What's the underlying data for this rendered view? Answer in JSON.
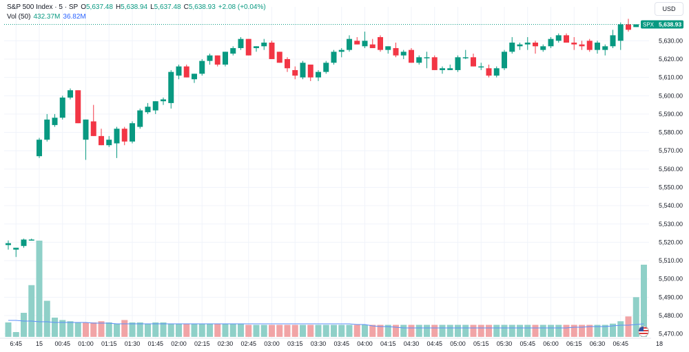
{
  "header": {
    "symbol": "S&P 500 Index · 5 · SP",
    "open_label": "O",
    "open": "5,637.48",
    "high_label": "H",
    "high": "5,638.94",
    "low_label": "L",
    "low": "5,637.48",
    "close_label": "C",
    "close": "5,638.93",
    "change": "+2.08 (+0.04%)",
    "vol_label": "Vol (50)",
    "vol_value": "432.37M",
    "vol_ma": "36.82M"
  },
  "currency": "USD",
  "price_tag": {
    "symbol": "SPX",
    "value": "5,638.93"
  },
  "colors": {
    "up": "#089981",
    "down": "#f23645",
    "vol_up": "#8fd0c8",
    "vol_down": "#f1a4a6",
    "vol_ma_line": "#5b8ff9",
    "grid": "#f0f3fa",
    "price_line": "#089981"
  },
  "chart_data": {
    "type": "candlestick",
    "ylim": [
      5465,
      5644
    ],
    "y_ticks": [
      "5,630.00",
      "5,620.00",
      "5,610.00",
      "5,600.00",
      "5,590.00",
      "5,580.00",
      "5,570.00",
      "5,560.00",
      "5,550.00",
      "5,540.00",
      "5,530.00",
      "5,520.00",
      "5,510.00",
      "5,500.00",
      "5,490.00",
      "5,480.00",
      "5,470.00"
    ],
    "y_tick_values": [
      5630,
      5620,
      5610,
      5600,
      5590,
      5580,
      5570,
      5560,
      5550,
      5540,
      5530,
      5520,
      5510,
      5500,
      5490,
      5480,
      5470
    ],
    "x_ticks": [
      "6:45",
      "15",
      "00:45",
      "01:00",
      "01:15",
      "01:30",
      "01:45",
      "02:00",
      "02:15",
      "02:30",
      "02:45",
      "03:00",
      "03:15",
      "03:30",
      "03:45",
      "04:00",
      "04:15",
      "04:30",
      "04:45",
      "05:00",
      "05:15",
      "05:30",
      "05:45",
      "06:00",
      "06:15",
      "06:30",
      "06:45",
      "18"
    ],
    "x_tick_positions": [
      1,
      4,
      7,
      10,
      13,
      16,
      19,
      22,
      25,
      28,
      31,
      34,
      37,
      40,
      43,
      46,
      49,
      52,
      55,
      58,
      61,
      64,
      67,
      70,
      73,
      76,
      79,
      84
    ],
    "candles": [
      {
        "o": 5518.5,
        "h": 5521,
        "l": 5516,
        "c": 5519.5
      },
      {
        "o": 5516,
        "h": 5517,
        "l": 5512,
        "c": 5517
      },
      {
        "o": 5518,
        "h": 5522,
        "l": 5517,
        "c": 5521.5
      },
      {
        "o": 5521.5,
        "h": 5522,
        "l": 5521,
        "c": 5521.5
      },
      {
        "o": 5567,
        "h": 5577,
        "l": 5566,
        "c": 5576
      },
      {
        "o": 5576,
        "h": 5590,
        "l": 5575,
        "c": 5587
      },
      {
        "o": 5584,
        "h": 5590,
        "l": 5583,
        "c": 5588
      },
      {
        "o": 5588,
        "h": 5600,
        "l": 5587,
        "c": 5599
      },
      {
        "o": 5599,
        "h": 5604,
        "l": 5598,
        "c": 5603
      },
      {
        "o": 5603,
        "h": 5603,
        "l": 5585,
        "c": 5585
      },
      {
        "o": 5576,
        "h": 5587,
        "l": 5565,
        "c": 5587
      },
      {
        "o": 5586,
        "h": 5595,
        "l": 5578,
        "c": 5578
      },
      {
        "o": 5578,
        "h": 5582,
        "l": 5573,
        "c": 5573
      },
      {
        "o": 5573,
        "h": 5578,
        "l": 5572,
        "c": 5576
      },
      {
        "o": 5574,
        "h": 5583,
        "l": 5566,
        "c": 5582
      },
      {
        "o": 5582,
        "h": 5583,
        "l": 5573,
        "c": 5575
      },
      {
        "o": 5575,
        "h": 5586,
        "l": 5574,
        "c": 5585
      },
      {
        "o": 5583,
        "h": 5593,
        "l": 5582,
        "c": 5592
      },
      {
        "o": 5591,
        "h": 5596,
        "l": 5590,
        "c": 5594
      },
      {
        "o": 5592,
        "h": 5597,
        "l": 5590,
        "c": 5597
      },
      {
        "o": 5597,
        "h": 5599,
        "l": 5595,
        "c": 5598
      },
      {
        "o": 5596,
        "h": 5614,
        "l": 5593,
        "c": 5613
      },
      {
        "o": 5611,
        "h": 5617,
        "l": 5609,
        "c": 5616
      },
      {
        "o": 5616,
        "h": 5617,
        "l": 5610,
        "c": 5610
      },
      {
        "o": 5609,
        "h": 5612,
        "l": 5607,
        "c": 5612
      },
      {
        "o": 5612,
        "h": 5620,
        "l": 5611,
        "c": 5619
      },
      {
        "o": 5619,
        "h": 5623,
        "l": 5617,
        "c": 5622
      },
      {
        "o": 5622,
        "h": 5622,
        "l": 5616,
        "c": 5617
      },
      {
        "o": 5617,
        "h": 5624,
        "l": 5616,
        "c": 5624
      },
      {
        "o": 5623,
        "h": 5627,
        "l": 5622,
        "c": 5626
      },
      {
        "o": 5626,
        "h": 5632,
        "l": 5625,
        "c": 5631
      },
      {
        "o": 5631,
        "h": 5631,
        "l": 5622,
        "c": 5622
      },
      {
        "o": 5626,
        "h": 5627,
        "l": 5624,
        "c": 5627
      },
      {
        "o": 5627,
        "h": 5631,
        "l": 5625,
        "c": 5629
      },
      {
        "o": 5629,
        "h": 5630,
        "l": 5620,
        "c": 5620
      },
      {
        "o": 5624,
        "h": 5624,
        "l": 5618,
        "c": 5618
      },
      {
        "o": 5620,
        "h": 5621,
        "l": 5613,
        "c": 5615
      },
      {
        "o": 5614,
        "h": 5616,
        "l": 5609,
        "c": 5611
      },
      {
        "o": 5610,
        "h": 5619,
        "l": 5609,
        "c": 5618
      },
      {
        "o": 5617,
        "h": 5617,
        "l": 5608,
        "c": 5610
      },
      {
        "o": 5610,
        "h": 5614,
        "l": 5608,
        "c": 5613
      },
      {
        "o": 5613,
        "h": 5619,
        "l": 5612,
        "c": 5618
      },
      {
        "o": 5618,
        "h": 5625,
        "l": 5617,
        "c": 5624
      },
      {
        "o": 5624,
        "h": 5626,
        "l": 5621,
        "c": 5625
      },
      {
        "o": 5625,
        "h": 5633,
        "l": 5624,
        "c": 5631
      },
      {
        "o": 5630,
        "h": 5632,
        "l": 5628,
        "c": 5628
      },
      {
        "o": 5627,
        "h": 5635,
        "l": 5626,
        "c": 5630
      },
      {
        "o": 5628,
        "h": 5631,
        "l": 5626,
        "c": 5626
      },
      {
        "o": 5632,
        "h": 5633,
        "l": 5624,
        "c": 5625
      },
      {
        "o": 5625,
        "h": 5627,
        "l": 5623,
        "c": 5627
      },
      {
        "o": 5626,
        "h": 5629,
        "l": 5621,
        "c": 5622
      },
      {
        "o": 5622,
        "h": 5625,
        "l": 5620,
        "c": 5624
      },
      {
        "o": 5625,
        "h": 5626,
        "l": 5618,
        "c": 5618
      },
      {
        "o": 5618,
        "h": 5622,
        "l": 5617,
        "c": 5621
      },
      {
        "o": 5621,
        "h": 5624,
        "l": 5615,
        "c": 5621
      },
      {
        "o": 5621,
        "h": 5622,
        "l": 5614,
        "c": 5614
      },
      {
        "o": 5614,
        "h": 5616,
        "l": 5612,
        "c": 5615
      },
      {
        "o": 5614,
        "h": 5617,
        "l": 5614,
        "c": 5615
      },
      {
        "o": 5614,
        "h": 5622,
        "l": 5613,
        "c": 5621
      },
      {
        "o": 5621,
        "h": 5625,
        "l": 5620,
        "c": 5621
      },
      {
        "o": 5621,
        "h": 5623,
        "l": 5616,
        "c": 5616
      },
      {
        "o": 5616,
        "h": 5618,
        "l": 5614,
        "c": 5616
      },
      {
        "o": 5615,
        "h": 5617,
        "l": 5610,
        "c": 5611
      },
      {
        "o": 5611,
        "h": 5616,
        "l": 5610,
        "c": 5615
      },
      {
        "o": 5615,
        "h": 5625,
        "l": 5614,
        "c": 5624
      },
      {
        "o": 5624,
        "h": 5632,
        "l": 5623,
        "c": 5629
      },
      {
        "o": 5627,
        "h": 5629,
        "l": 5625,
        "c": 5628
      },
      {
        "o": 5628,
        "h": 5632,
        "l": 5625,
        "c": 5629
      },
      {
        "o": 5629,
        "h": 5630,
        "l": 5623,
        "c": 5627
      },
      {
        "o": 5625,
        "h": 5628,
        "l": 5624,
        "c": 5627
      },
      {
        "o": 5627,
        "h": 5632,
        "l": 5626,
        "c": 5631
      },
      {
        "o": 5630,
        "h": 5634,
        "l": 5629,
        "c": 5633
      },
      {
        "o": 5633,
        "h": 5634,
        "l": 5629,
        "c": 5629
      },
      {
        "o": 5629,
        "h": 5632,
        "l": 5625,
        "c": 5628
      },
      {
        "o": 5628,
        "h": 5630,
        "l": 5625,
        "c": 5627
      },
      {
        "o": 5630,
        "h": 5631,
        "l": 5624,
        "c": 5625
      },
      {
        "o": 5625,
        "h": 5630,
        "l": 5623,
        "c": 5629
      },
      {
        "o": 5625,
        "h": 5628,
        "l": 5622,
        "c": 5627
      },
      {
        "o": 5627,
        "h": 5636,
        "l": 5626,
        "c": 5633
      },
      {
        "o": 5630,
        "h": 5640,
        "l": 5625,
        "c": 5639
      },
      {
        "o": 5639,
        "h": 5642,
        "l": 5635,
        "c": 5636
      },
      {
        "o": 5637.48,
        "h": 5638.94,
        "l": 5637.48,
        "c": 5638.93
      }
    ],
    "volume_units": "relative",
    "volumes": [
      12,
      4,
      20,
      43,
      80,
      30,
      16,
      14,
      13,
      12,
      12,
      12,
      13,
      12,
      11,
      14,
      12,
      12,
      11,
      12,
      12,
      11,
      11,
      11,
      11,
      11,
      11,
      11,
      11,
      11,
      11,
      10,
      10,
      10,
      10,
      10,
      10,
      10,
      10,
      10,
      10,
      10,
      10,
      10,
      10,
      10,
      10,
      10,
      10,
      10,
      10,
      10,
      10,
      10,
      10,
      10,
      10,
      10,
      10,
      10,
      10,
      10,
      10,
      10,
      10,
      10,
      10,
      10,
      10,
      10,
      10,
      10,
      10,
      10,
      10,
      10,
      10,
      10,
      11,
      13,
      17,
      33,
      60
    ],
    "volume_up": [
      1,
      1,
      1,
      1,
      1,
      1,
      1,
      1,
      1,
      1,
      0,
      0,
      0,
      1,
      1,
      0,
      1,
      1,
      1,
      1,
      1,
      1,
      1,
      0,
      1,
      1,
      1,
      0,
      1,
      1,
      1,
      0,
      1,
      1,
      0,
      0,
      0,
      0,
      1,
      0,
      1,
      1,
      1,
      1,
      1,
      0,
      1,
      0,
      0,
      1,
      0,
      1,
      0,
      1,
      1,
      0,
      1,
      1,
      1,
      1,
      0,
      0,
      0,
      1,
      1,
      1,
      1,
      1,
      0,
      1,
      1,
      1,
      0,
      0,
      0,
      0,
      1,
      1,
      1,
      1,
      0,
      1,
      1
    ],
    "vol_ma_percent": [
      24,
      24,
      23,
      23,
      22,
      22,
      21,
      21,
      21,
      21,
      21,
      20,
      20,
      20,
      19,
      19,
      19,
      19,
      19,
      19,
      19,
      19,
      19,
      19,
      19,
      19,
      19,
      19,
      19,
      19,
      19,
      19,
      19,
      19,
      19,
      19,
      19,
      19,
      19,
      19,
      19,
      19,
      19,
      19,
      19,
      18,
      18,
      16,
      15,
      15,
      14,
      13,
      13,
      13,
      13,
      13,
      13,
      13,
      13,
      13,
      13,
      13,
      13,
      13,
      13,
      13,
      13,
      13,
      13,
      13,
      13,
      13,
      13,
      14,
      14,
      15,
      15,
      15,
      16,
      17,
      17,
      18,
      19
    ]
  }
}
